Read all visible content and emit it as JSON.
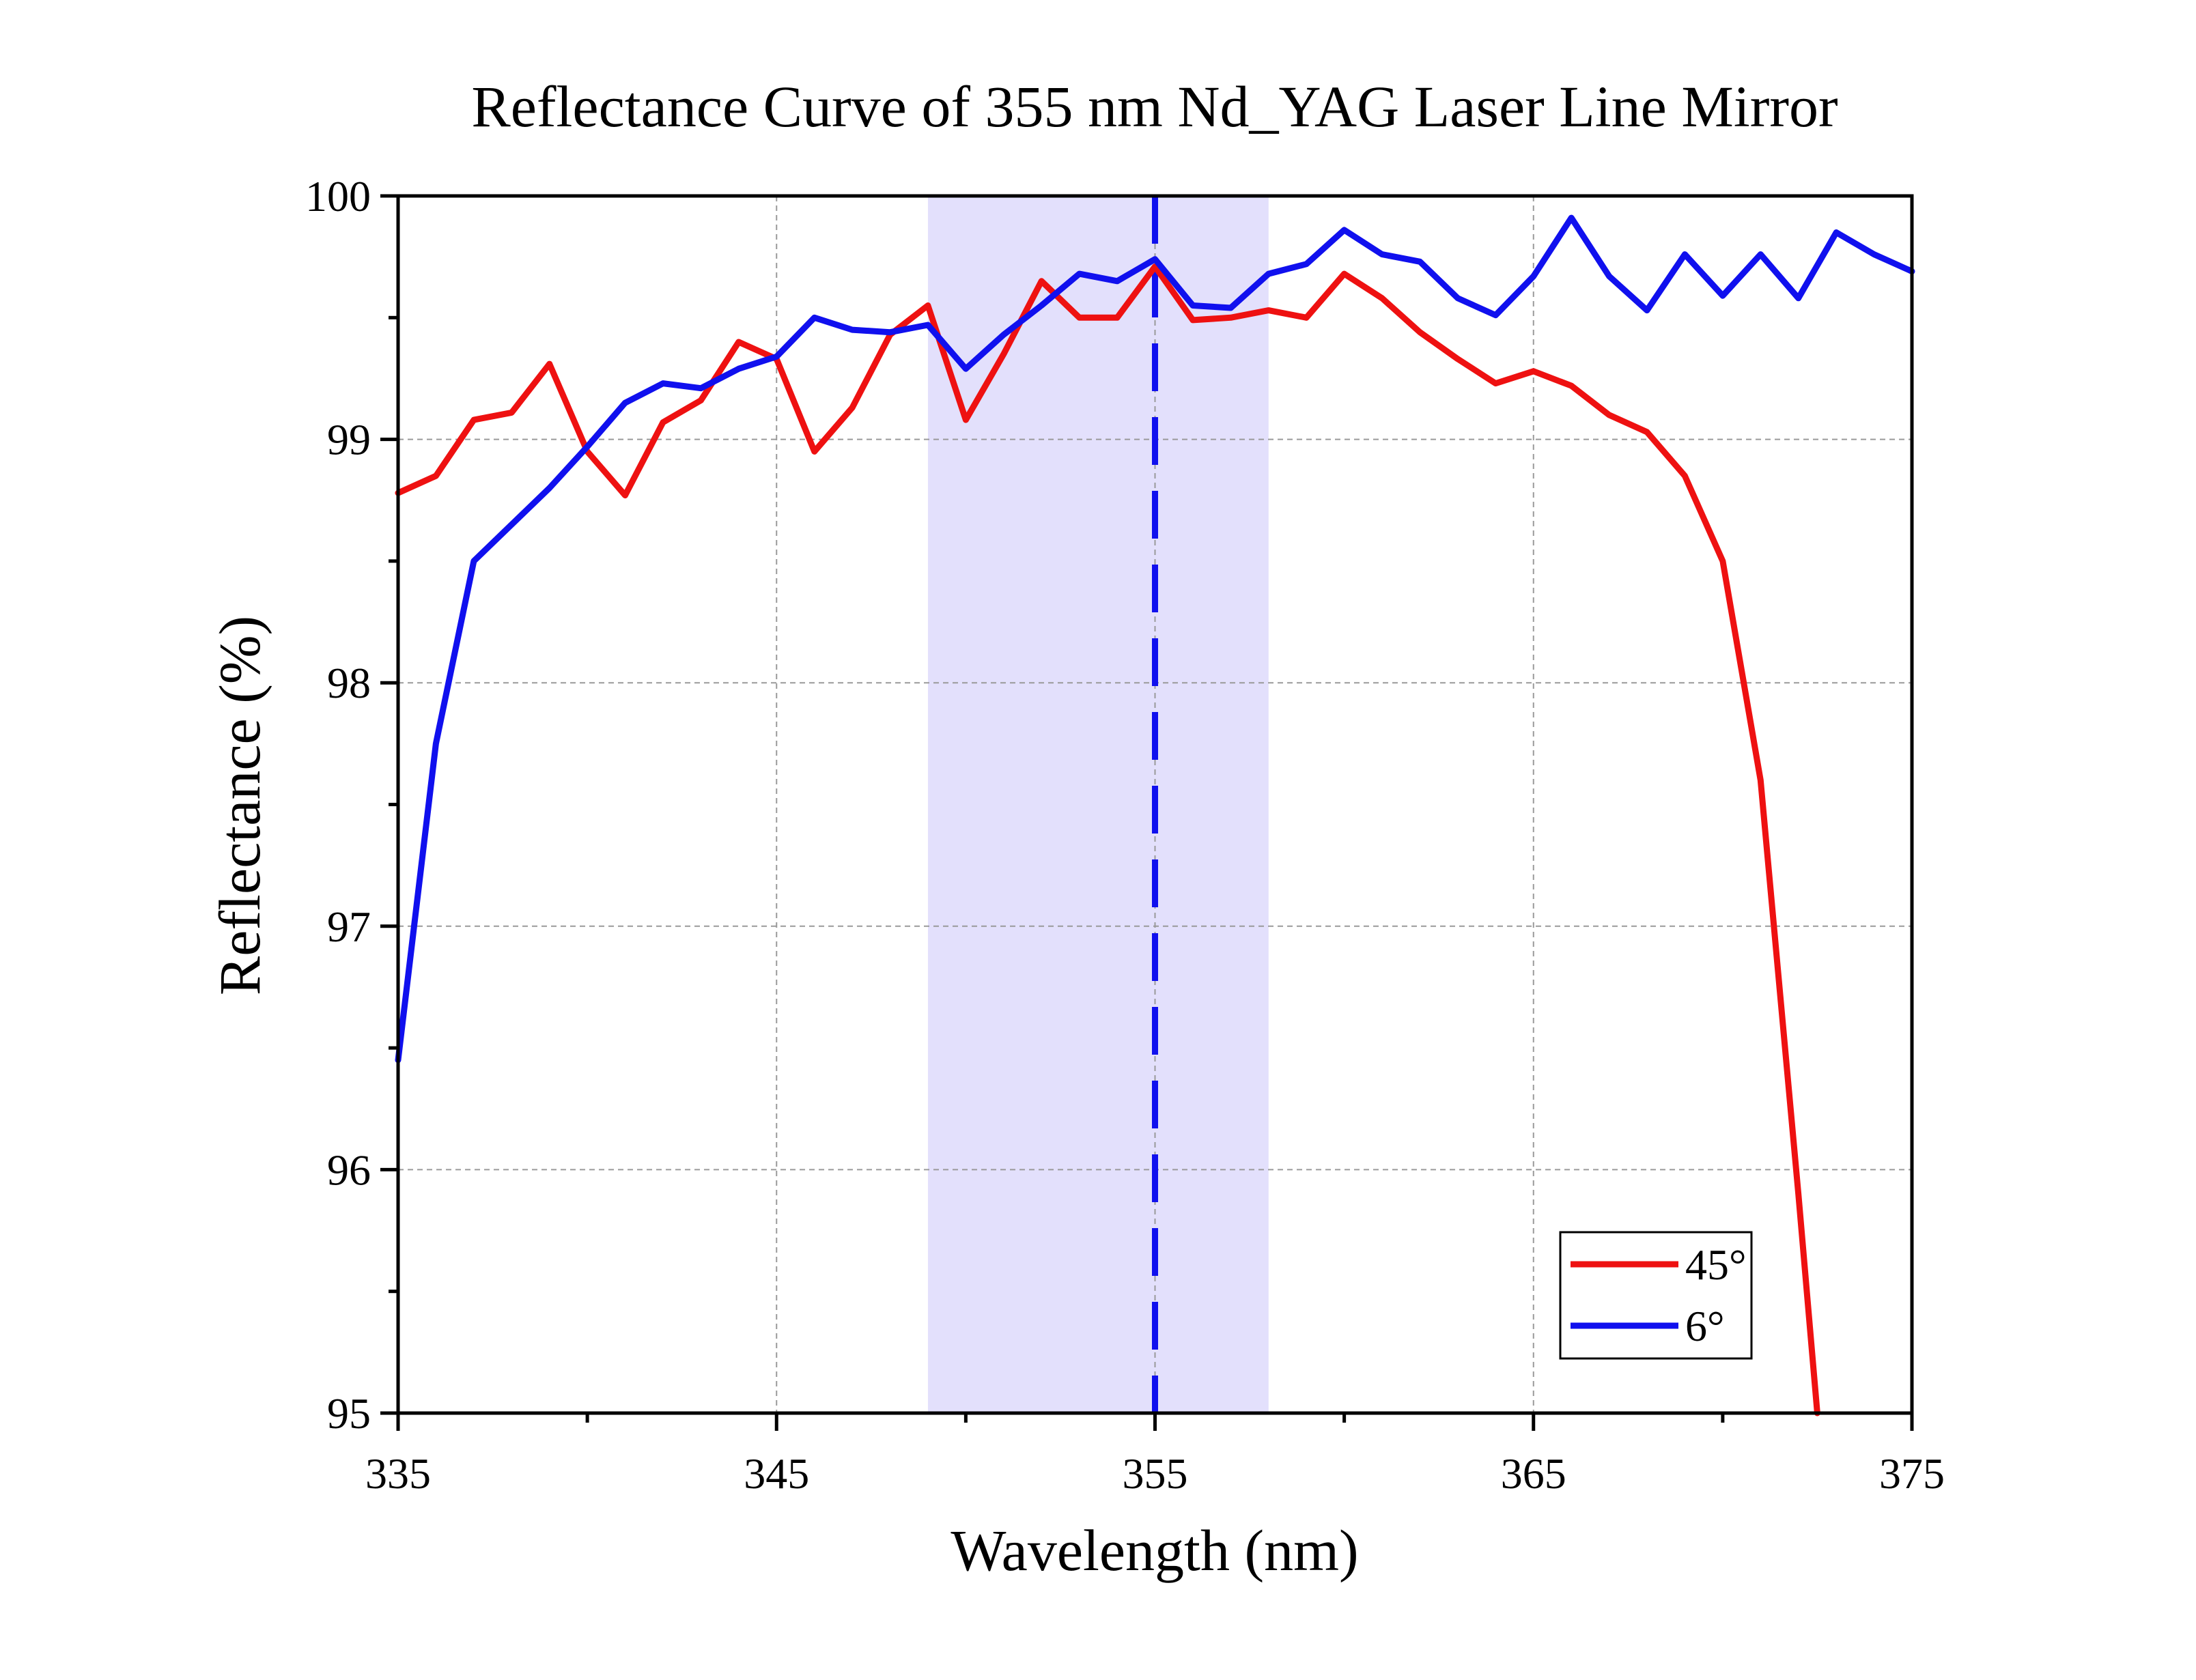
{
  "chart_data": {
    "type": "line",
    "title": "Reflectance Curve of 355 nm Nd_YAG Laser Line Mirror",
    "xlabel": "Wavelength (nm)",
    "ylabel": "Reflectance (%)",
    "xlim": [
      335,
      375
    ],
    "ylim": [
      95,
      100
    ],
    "xticks": [
      335,
      345,
      355,
      365,
      375
    ],
    "yticks": [
      95,
      96,
      97,
      98,
      99,
      100
    ],
    "xtick_labels": [
      "335",
      "345",
      "355",
      "365",
      "375"
    ],
    "ytick_labels": [
      "95",
      "96",
      "97",
      "98",
      "99",
      "100"
    ],
    "grid": true,
    "legend_position": "bottom-right",
    "highlight_band": {
      "x_start": 349,
      "x_end": 358,
      "color": "#e3e0fc"
    },
    "reference_line": {
      "x": 355,
      "style": "dashed",
      "color": "#1010ee"
    },
    "series": [
      {
        "name": "45°",
        "color": "#ee1111",
        "x": [
          335,
          336,
          337,
          338,
          339,
          340,
          341,
          342,
          343,
          344,
          345,
          346,
          347,
          348,
          349,
          350,
          351,
          352,
          353,
          354,
          355,
          356,
          357,
          358,
          359,
          360,
          361,
          362,
          363,
          364,
          365,
          366,
          367,
          368,
          369,
          370,
          371,
          372,
          372.5
        ],
        "y": [
          98.78,
          98.85,
          99.08,
          99.11,
          99.31,
          98.95,
          98.77,
          99.07,
          99.16,
          99.4,
          99.33,
          98.95,
          99.13,
          99.43,
          99.55,
          99.08,
          99.35,
          99.65,
          99.5,
          99.5,
          99.71,
          99.49,
          99.5,
          99.53,
          99.5,
          99.68,
          99.58,
          99.44,
          99.33,
          99.23,
          99.28,
          99.22,
          99.1,
          99.03,
          98.85,
          98.5,
          97.6,
          95.9,
          95.0
        ]
      },
      {
        "name": "6°",
        "color": "#1010ee",
        "x": [
          335,
          336,
          337,
          338,
          339,
          340,
          341,
          342,
          343,
          344,
          345,
          346,
          347,
          348,
          349,
          350,
          351,
          352,
          353,
          354,
          355,
          356,
          357,
          358,
          359,
          360,
          361,
          362,
          363,
          364,
          365,
          366,
          367,
          368,
          369,
          370,
          371,
          372,
          373,
          374,
          375
        ],
        "y": [
          96.45,
          97.75,
          98.5,
          98.65,
          98.8,
          98.97,
          99.15,
          99.23,
          99.21,
          99.29,
          99.34,
          99.5,
          99.45,
          99.44,
          99.47,
          99.29,
          99.43,
          99.55,
          99.68,
          99.65,
          99.74,
          99.55,
          99.54,
          99.68,
          99.72,
          99.86,
          99.76,
          99.73,
          99.58,
          99.51,
          99.67,
          99.91,
          99.67,
          99.53,
          99.76,
          99.59,
          99.76,
          99.58,
          99.85,
          99.76,
          99.69
        ]
      }
    ]
  }
}
